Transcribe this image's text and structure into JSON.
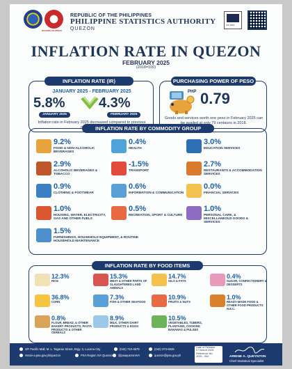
{
  "header": {
    "republic": "REPUBLIC OF THE PHILIPPINES",
    "agency": "PHILIPPINE STATISTICS AUTHORITY",
    "province": "QUEZON",
    "bagong_text": "BAGONG PILIPINAS",
    "cert_text": "ISO 9001"
  },
  "title": "INFLATION RATE IN QUEZON",
  "subtitle": "FEBRUARY 2025",
  "base_year": "(2018=100)",
  "inflation_rate": {
    "heading": "INFLATION RATE (IR)",
    "range": "JANUARY 2025 - FEBRUARY 2025",
    "jan_value": "5.8%",
    "feb_value": "4.3%",
    "jan_label": "JANUARY 2025",
    "feb_label": "FEBRUARY 2025",
    "note": "Inflation rate in February 2025 decreased compared to previous month's rate.",
    "trend": "decrease"
  },
  "ppp": {
    "heading": "PURCHASING POWER OF PESO (PPP)",
    "currency": "PHP",
    "value": "0.79",
    "note": "Goods and services worth one peso in February 2025 can be availed at only 79 centavos in 2018."
  },
  "commodity": {
    "heading": "INFLATION RATE  BY COMMODITY GROUP",
    "items": [
      {
        "value": "9.2%",
        "label": "FOOD & NON-ALCOHOLIC BEVERAGES",
        "icon": "food-icon",
        "color": "#e8a33d"
      },
      {
        "value": "0.4%",
        "label": "HEALTH",
        "icon": "health-icon",
        "color": "#4fa3d9"
      },
      {
        "value": "3.0%",
        "label": "EDUCATION SERVICES",
        "icon": "education-icon",
        "color": "#2e6eb5"
      },
      {
        "value": "2.9%",
        "label": "ALCOHOLIC BEVERAGES & TOBACCO",
        "icon": "alcohol-icon",
        "color": "#c0562b"
      },
      {
        "value": "-1.5%",
        "label": "TRANSPORT",
        "icon": "transport-icon",
        "color": "#e24b3b"
      },
      {
        "value": "2.7%",
        "label": "RESTAURANTS & ACCOMMODATION SERVICES",
        "icon": "restaurant-icon",
        "color": "#d97a2e"
      },
      {
        "value": "0.9%",
        "label": "CLOTHING & FOOTWEAR",
        "icon": "clothing-icon",
        "color": "#3c7fc4"
      },
      {
        "value": "0.6%",
        "label": "INFORMATION & COMMUNICATION",
        "icon": "communication-icon",
        "color": "#5aa0d8"
      },
      {
        "value": "0.0%",
        "label": "FINANCIAL SERVICES",
        "icon": "financial-icon",
        "color": "#f2c14e"
      },
      {
        "value": "1.0%",
        "label": "HOUSING, WATER, ELECTRICITY, GAS AND OTHER FUELS",
        "icon": "housing-icon",
        "color": "#d9582f"
      },
      {
        "value": "0.5%",
        "label": "RECREATION, SPORT & CULTURE",
        "icon": "recreation-icon",
        "color": "#e76a43"
      },
      {
        "value": "1.0%",
        "label": "PERSONAL CARE, & MISCELLANEOUS GOODS & SERVICES",
        "icon": "personal-care-icon",
        "color": "#8e6cc1"
      },
      {
        "value": "1.5%",
        "label": "FURNISHINGS, HOUSEHOLD EQUIPMENT, & ROUTINE HOUSEHOLD MAINTENANCE",
        "icon": "furnishings-icon",
        "color": "#4e90c9"
      }
    ]
  },
  "food": {
    "heading": "INFLATION RATE BY FOOD ITEMS",
    "items": [
      {
        "value": "12.3%",
        "label": "RICE",
        "icon": "rice-icon",
        "color": "#f0e2b6"
      },
      {
        "value": "15.3%",
        "label": "MEAT & OTHER PARTS OF SLAUGHTERED LAND ANIMALS",
        "icon": "meat-icon",
        "color": "#d9534f"
      },
      {
        "value": "14.7%",
        "label": "OILS & FATS",
        "icon": "oil-icon",
        "color": "#f2c14e"
      },
      {
        "value": "0.4%",
        "label": "SUGAR, CONFECTIONERY & DESSERTS",
        "icon": "sugar-icon",
        "color": "#e89ab8"
      },
      {
        "value": "36.8%",
        "label": "CORN",
        "icon": "corn-icon",
        "color": "#f5c542"
      },
      {
        "value": "7.3%",
        "label": "FISH & OTHER SEAFOOD",
        "icon": "fish-icon",
        "color": "#5aa0d8"
      },
      {
        "value": "10.9%",
        "label": "FRUITS & NUTS",
        "icon": "fruit-icon",
        "color": "#e76a43"
      },
      {
        "value": "1.0%",
        "label": "READY-MADE FOOD & OTHER FOOD PRODUCTS N.E.C.",
        "icon": "ready-food-icon",
        "color": "#d9822b"
      },
      {
        "value": "0.8%",
        "label": "FLOUR, BREAD, & OTHER BAKERY PRODUCTS, PASTA PRODUCTS & OTHER CEREALS",
        "icon": "bread-icon",
        "color": "#d9a35a"
      },
      {
        "value": "8.9%",
        "label": "MILK, OTHER DAIRY PRODUCTS & EGGS",
        "icon": "milk-icon",
        "color": "#9cc9ea"
      },
      {
        "value": "10.5%",
        "label": "VEGETABLES, TUBERS, PLANTAINS, COOKING BANANAS & PULSES",
        "icon": "vegetable-icon",
        "color": "#6cb35a"
      }
    ]
  },
  "footer": {
    "address": "3/F Pacific Mall, M. L. Tagarao Street, Brgy. 3, Lucena City",
    "phone1": "(042) 710-4579",
    "phone2": "(042) 373-6829",
    "website": "rssoiv-a.psa.gov.ph/quezon",
    "facebook": "PSA Region IVA Quezon",
    "twitter": "@psaquezonIVA",
    "email": "quezon@psa.gov.ph",
    "release_label": "Date of Release:",
    "release_date": "07 March 2025",
    "ref_label": "Reference No.",
    "ref_no": "2025 - 004",
    "signatory": "ARIENE A. QUEYNTON",
    "signatory_title": "Chief Statistical Specialist"
  }
}
